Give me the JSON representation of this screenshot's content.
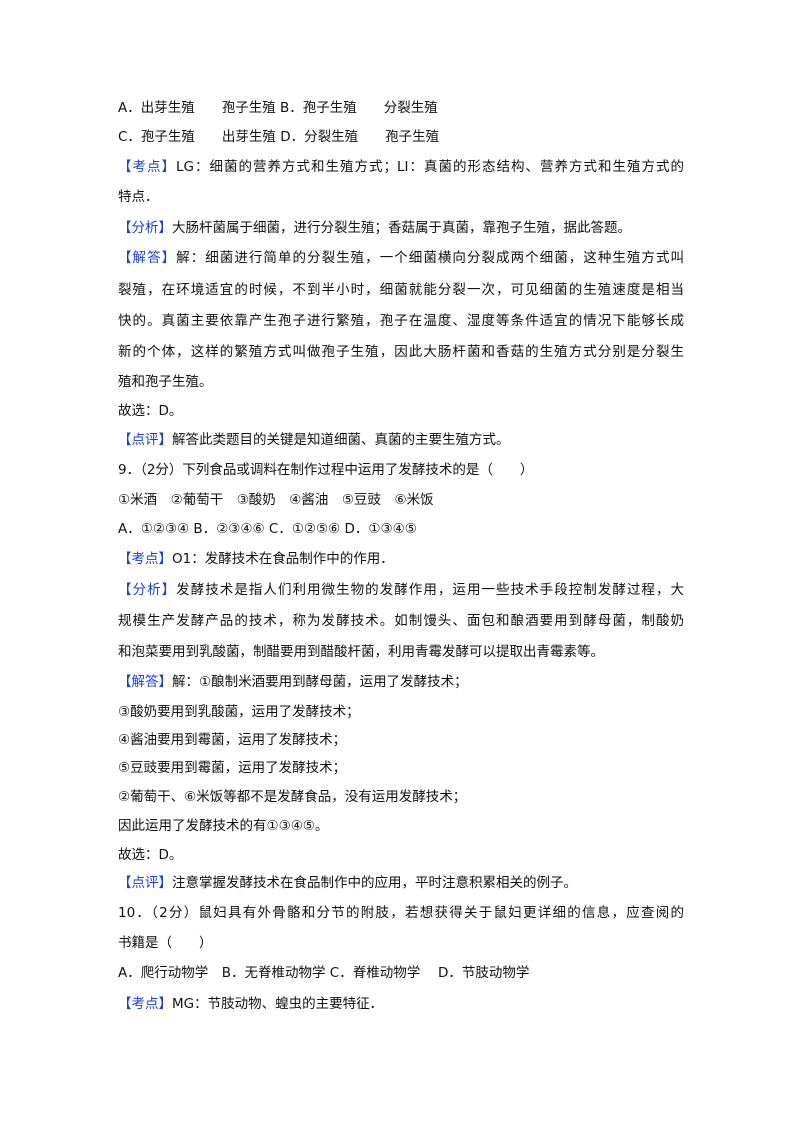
{
  "lines": [
    {
      "text": "A．出芽生殖　　孢子生殖 B．孢子生殖　　分裂生殖"
    },
    {
      "text": "C．孢子生殖　　出芽生殖 D．分裂生殖　　孢子生殖"
    },
    {
      "tag": "【考点】",
      "text": "LG：细菌的营养方式和生殖方式；LI：真菌的形态结构、营养方式和生殖方式的"
    },
    {
      "text": "特点．"
    },
    {
      "tag": "【分析】",
      "text": "大肠杆菌属于细菌，进行分裂生殖；香菇属于真菌，靠孢子生殖，据此答题。"
    },
    {
      "tag": "【解答】",
      "text": "解：细菌进行简单的分裂生殖，一个细菌横向分裂成两个细菌，这种生殖方式叫"
    },
    {
      "text": "裂殖，在环境适宜的时候，不到半小时，细菌就能分裂一次，可见细菌的生殖速度是相当"
    },
    {
      "text": "快的。真菌主要依靠产生孢子进行繁殖，孢子在温度、湿度等条件适宜的情况下能够长成"
    },
    {
      "text": "新的个体，这样的繁殖方式叫做孢子生殖，因此大肠杆菌和香菇的生殖方式分别是分裂生"
    },
    {
      "text": "殖和孢子生殖。"
    },
    {
      "text": "故选：D。"
    },
    {
      "tag": "【点评】",
      "text": "解答此类题目的关键是知道细菌、真菌的主要生殖方式。"
    },
    {
      "text": "9．（2分）下列食品或调料在制作过程中运用了发酵技术的是（　　）"
    },
    {
      "text": "①米酒　②葡萄干　③酸奶　④酱油　⑤豆豉　⑥米饭"
    },
    {
      "text": "A．①②③④ B．②③④⑥ C．①②⑤⑥ D．①③④⑤"
    },
    {
      "tag": "【考点】",
      "text": "O1：发酵技术在食品制作中的作用．"
    },
    {
      "tag": "【分析】",
      "text": "发酵技术是指人们利用微生物的发酵作用，运用一些技术手段控制发酵过程，大"
    },
    {
      "text": "规模生产发酵产品的技术，称为发酵技术。如制馒头、面包和酿酒要用到酵母菌，制酸奶"
    },
    {
      "text": "和泡菜要用到乳酸菌，制醋要用到醋酸杆菌，利用青霉发酵可以提取出青霉素等。"
    },
    {
      "tag": "【解答】",
      "text": "解：①酿制米酒要用到酵母菌，运用了发酵技术；"
    },
    {
      "text": "③酸奶要用到乳酸菌，运用了发酵技术；"
    },
    {
      "text": "④酱油要用到霉菌，运用了发酵技术；"
    },
    {
      "text": "⑤豆豉要用到霉菌，运用了发酵技术；"
    },
    {
      "text": "②葡萄干、⑥米饭等都不是发酵食品，没有运用发酵技术；"
    },
    {
      "text": "因此运用了发酵技术的有①③④⑤。"
    },
    {
      "text": "故选：D。"
    },
    {
      "tag": "【点评】",
      "text": "注意掌握发酵技术在食品制作中的应用，平时注意积累相关的例子。"
    },
    {
      "text": "10．（2分）鼠妇具有外骨骼和分节的附肢，若想获得关于鼠妇更详细的信息，应查阅的"
    },
    {
      "text": "书籍是（　　）"
    },
    {
      "text": "A．爬行动物学　B．无脊椎动物学 C．脊椎动物学　 D．节肢动物学"
    },
    {
      "tag": "【考点】",
      "text": "MG：节肢动物、蝗虫的主要特征．"
    }
  ]
}
